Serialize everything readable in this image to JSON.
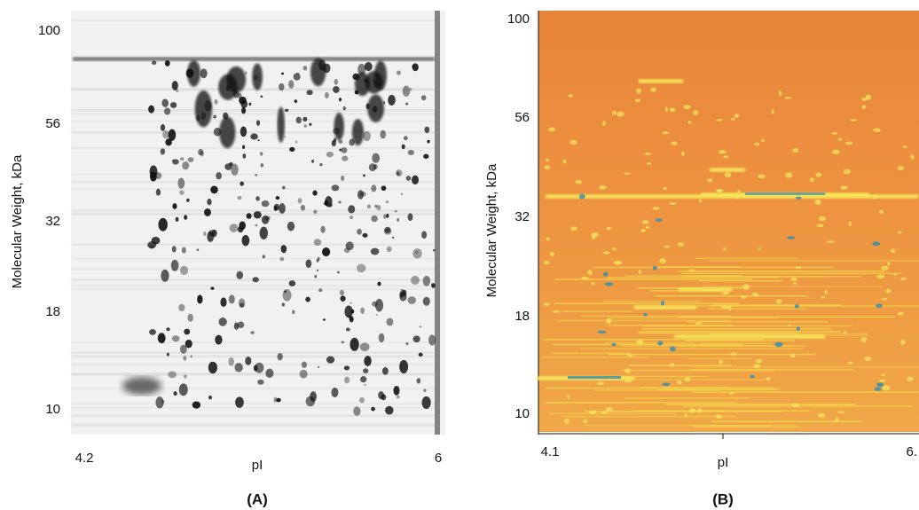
{
  "panels": [
    {
      "label": "(A)",
      "y_axis_label": "Molecular Weight, kDa",
      "y_ticks": [
        "100",
        "56",
        "32",
        "18",
        "10"
      ],
      "x_axis_label": "pI",
      "x_ticks": [
        "4.2",
        "6"
      ]
    },
    {
      "label": "(B)",
      "y_axis_label": "Molecular Weight, kDa",
      "y_ticks": [
        "100",
        "56",
        "32",
        "18",
        "10"
      ],
      "x_axis_label": "pI",
      "x_ticks": [
        "4.1",
        "6."
      ]
    }
  ]
}
